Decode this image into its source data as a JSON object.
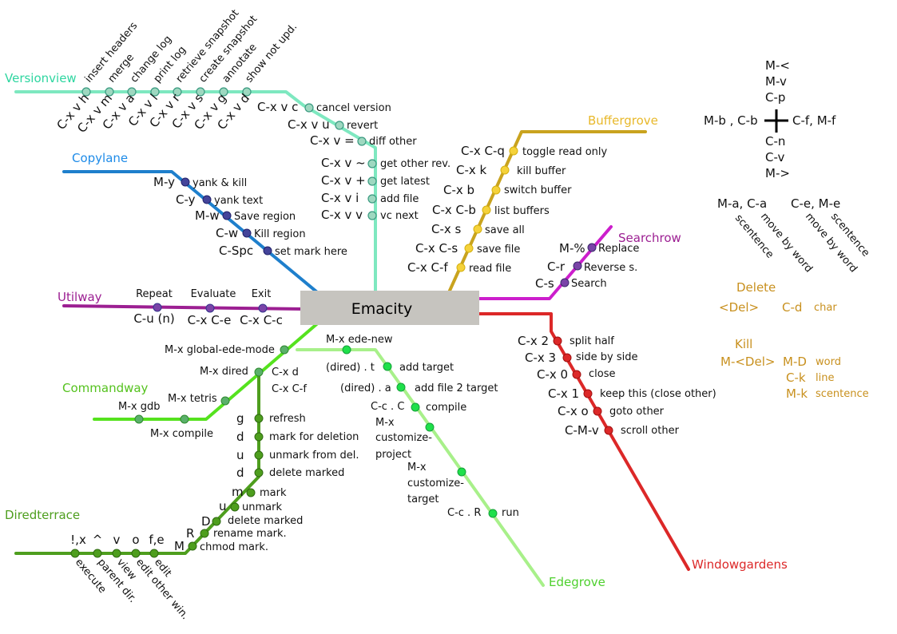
{
  "hub": "Emacity",
  "lines": {
    "versionview": {
      "name": "Versionview",
      "color": "#7ee8c0",
      "stroke": "#3a9a80",
      "top_labels": [
        "insert headers",
        "merge",
        "change log",
        "print log",
        "retrieve snapshot",
        "create snapshot",
        "annotate",
        "show not upd."
      ],
      "top_keys": [
        "C-x v h",
        "C-x v m",
        "C-x v a",
        "C-x v l",
        "C-x v r",
        "C-x v s",
        "C-x v g",
        "C-x v d"
      ],
      "right_keys": [
        "C-x v c",
        "C-x v u",
        "C-x v =",
        "C-x v ~",
        "C-x v +",
        "C-x v i",
        "C-x v v"
      ],
      "right_labels": [
        "cancel version",
        "revert",
        "diff other",
        "get other rev.",
        "get latest",
        "add file",
        "vc next"
      ]
    },
    "copylane": {
      "name": "Copylane",
      "color": "#1e7fcc",
      "stroke": "#34348c",
      "keys": [
        "M-y",
        "C-y",
        "M-w",
        "C-w",
        "C-Spc"
      ],
      "labels": [
        "yank & kill",
        "yank text",
        "Save region",
        "Kill region",
        "set mark here"
      ]
    },
    "utilway": {
      "name": "Utilway",
      "color": "#9c1f92",
      "stroke": "#34348c",
      "labels": [
        "Repeat",
        "Evaluate",
        "Exit"
      ],
      "keys": [
        "C-u (n)",
        "C-x C-e",
        "C-x C-c"
      ]
    },
    "commandway": {
      "name": "Commandway",
      "color": "#55e21e",
      "stroke": "#2e8a2e",
      "items": [
        "M-x global-ede-mode",
        "M-x dired",
        "M-x tetris",
        "M-x gdb",
        "M-x compile"
      ],
      "dired_keys": [
        "C-x d",
        "C-x C-f"
      ]
    },
    "diredterrace": {
      "name": "Diredterrace",
      "color": "#4e9e1e",
      "stroke": "#2f6a12",
      "right_keys": [
        "g",
        "d",
        "u",
        "d"
      ],
      "right_labels": [
        "refresh",
        "mark for deletion",
        "unmark from del.",
        "delete marked"
      ],
      "diag_keys": [
        "m",
        "u",
        "D",
        "R",
        "M"
      ],
      "diag_labels": [
        "mark",
        "unmark",
        "delete marked",
        "rename mark.",
        "chmod mark."
      ],
      "bottom_keys": [
        "!,x",
        "^",
        "v",
        "o",
        "f,e"
      ],
      "bottom_labels": [
        "execute",
        "parent dir.",
        "view",
        "edit other win.",
        "edit"
      ]
    },
    "edegrove": {
      "name": "Edegrove",
      "color": "#a8f08a",
      "stroke": "#1ec83c",
      "top": "M-x ede-new",
      "keys": [
        "(dired) . t",
        "(dired) . a",
        "C-c . C",
        "",
        "",
        "C-c . R"
      ],
      "labels": [
        "add target",
        "add file 2 target",
        "compile",
        "M-x customize-project",
        "M-x customize-target",
        "run"
      ],
      "custom_project": [
        "M-x",
        "customize-",
        "project"
      ],
      "custom_target": [
        "M-x",
        "customize-",
        "target"
      ]
    },
    "buffergrove": {
      "name": "Buffergrove",
      "color": "#c9a31e",
      "stroke": "#b08a00",
      "keys": [
        "C-x C-q",
        "C-x k",
        "C-x b",
        "C-x C-b",
        "C-x s",
        "C-x C-s",
        "C-x C-f"
      ],
      "labels": [
        "toggle read only",
        "kill buffer",
        "switch buffer",
        "list buffers",
        "save all",
        "save file",
        "read file"
      ]
    },
    "searchrow": {
      "name": "Searchrow",
      "color": "#cc1ecc",
      "stroke": "#5a2a8a",
      "keys": [
        "M-%",
        "C-r",
        "C-s"
      ],
      "labels": [
        "Replace",
        "Reverse s.",
        "Search"
      ]
    },
    "windowgardens": {
      "name": "Windowgardens",
      "color": "#dc2828",
      "stroke": "#a01010",
      "keys": [
        "C-x 2",
        "C-x 3",
        "C-x 0",
        "C-x 1",
        "C-x o",
        "C-M-v"
      ],
      "labels": [
        "split half",
        "side by side",
        "close",
        "keep this (close other)",
        "goto other",
        "scroll other"
      ]
    }
  },
  "legend": {
    "nav": {
      "up1": "M-<",
      "up2": "M-v",
      "up3": "C-p",
      "left": "M-b , C-b",
      "right": "C-f, M-f",
      "down1": "C-n",
      "down2": "C-v",
      "down3": "M->"
    },
    "words": {
      "left_key": "M-a, C-a",
      "right_key": "C-e, M-e",
      "r1": "scentence",
      "r2": "move by word",
      "r3": "move by word",
      "r4": "scentence"
    },
    "delete": {
      "title": "Delete",
      "key1": "<Del>",
      "key2": "C-d",
      "unit": "char"
    },
    "kill": {
      "title": "Kill",
      "k1": "M-<Del>",
      "k2": "M-D",
      "k3": "C-k",
      "k4": "M-k",
      "u1": "word",
      "u2": "line",
      "u3": "scentence"
    },
    "orange": "#c8901e"
  }
}
